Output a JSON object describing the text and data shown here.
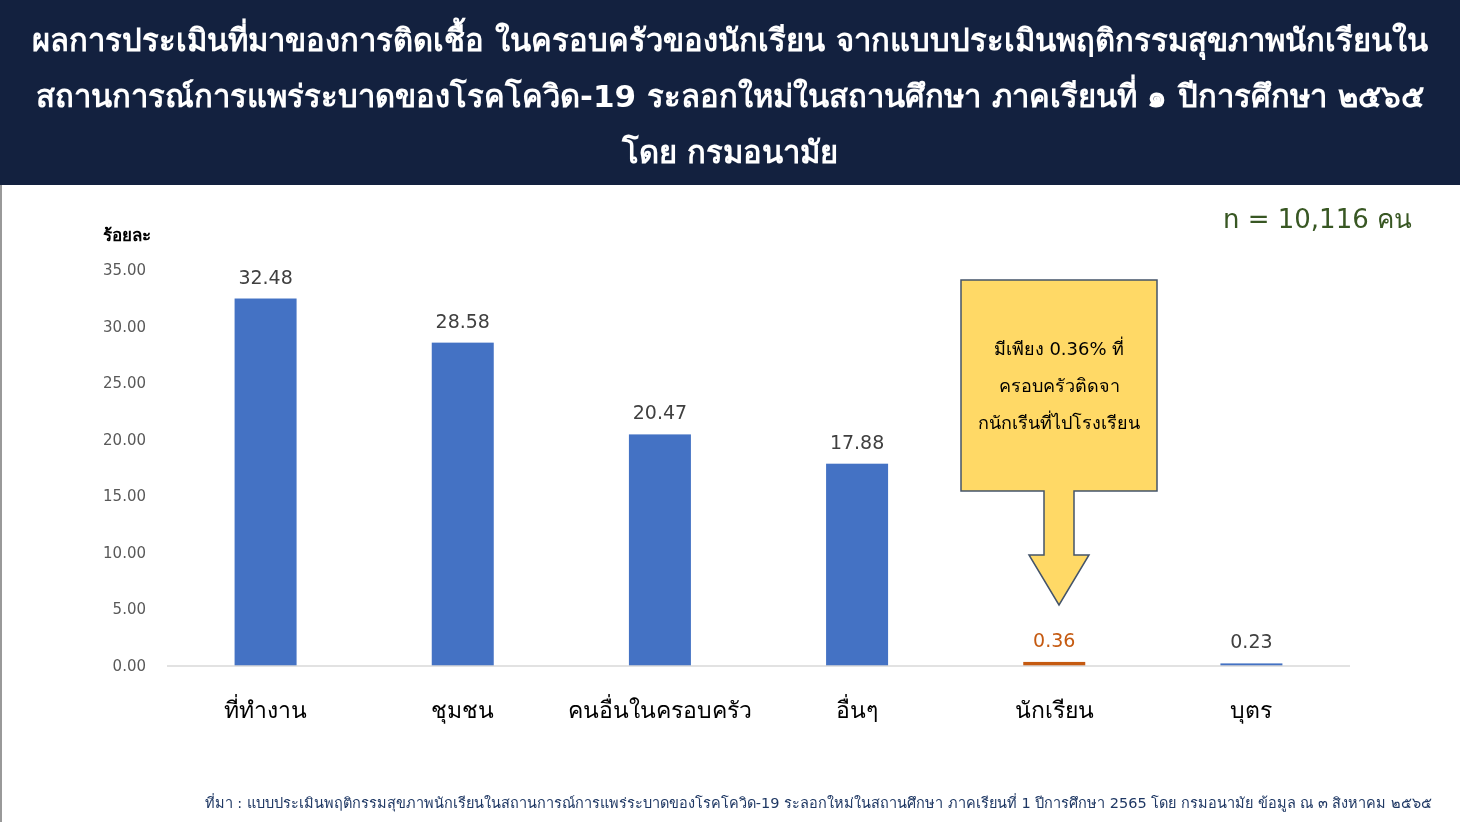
{
  "chart_data": {
    "type": "bar",
    "title": "ผลการประเมินที่มาของการติดเชื้อ ในครอบครัวของนักเรียน จากแบบประเมินพฤติกรรมสุขภาพนักเรียนในสถานการณ์การแพร่ระบาดของโรคโควิด-19 ระลอกใหม่ในสถานศึกษา ภาคเรียนที่ ๑ ปีการศึกษา ๒๕๖๕ โดย กรมอนามัย",
    "ylabel": "ร้อยละ",
    "categories": [
      "ที่ทำงาน",
      "ชุมชน",
      "คนอื่นในครอบครัว",
      "อื่นๆ",
      "นักเรียน",
      "บุตร"
    ],
    "values": [
      32.48,
      28.58,
      20.47,
      17.88,
      0.36,
      0.23
    ],
    "colors": [
      "#4472c4",
      "#4472c4",
      "#4472c4",
      "#4472c4",
      "#c55a11",
      "#4472c4"
    ],
    "data_labels": true,
    "ylim": [
      0,
      35
    ],
    "yticks": [
      {
        "value": 0,
        "label": "0.00"
      },
      {
        "value": 5,
        "label": "5.00"
      },
      {
        "value": 10,
        "label": "10.00"
      },
      {
        "value": 15,
        "label": "15.00"
      },
      {
        "value": 20,
        "label": "20.00"
      },
      {
        "value": 25,
        "label": "25.00"
      },
      {
        "value": 30,
        "label": "30.00"
      },
      {
        "value": 35,
        "label": "35.00"
      }
    ],
    "grid": false,
    "annotations": [
      "n = 10,116  คน",
      "ที่มา : แบบประเมินพฤติกรรมสุขภาพนักเรียนในสถานการณ์การแพร่ระบาดของโรคโควิด-19 ระลอกใหม่ในสถานศึกษา ภาคเรียนที่ 1 ปีการศึกษา 2565 โดย กรมอนามัย ข้อมูล ณ ๓ สิงหาคม ๒๕๖๕",
      "มีเพียง 0.36% ที่ครอบครัวติดจากนักเรีนที่ไปโรงเรียน"
    ]
  }
}
